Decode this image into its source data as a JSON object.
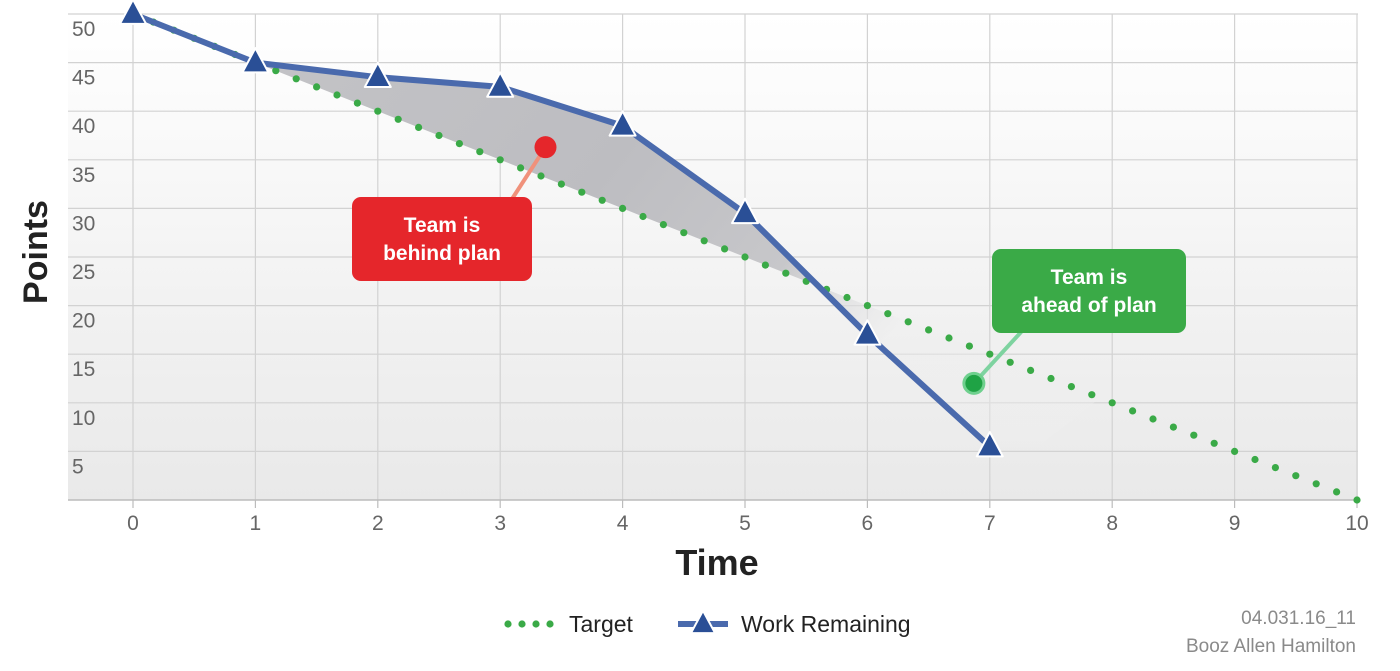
{
  "chart_data": {
    "type": "line",
    "title": "",
    "xlabel": "Time",
    "ylabel": "Points",
    "x": [
      0,
      1,
      2,
      3,
      4,
      5,
      6,
      7,
      8,
      9,
      10
    ],
    "xlim": [
      0,
      10
    ],
    "ylim": [
      0,
      50
    ],
    "x_ticks": [
      "0",
      "1",
      "2",
      "3",
      "4",
      "5",
      "6",
      "7",
      "8",
      "9",
      "10"
    ],
    "y_ticks": [
      "5",
      "10",
      "15",
      "20",
      "25",
      "30",
      "35",
      "40",
      "45",
      "50"
    ],
    "grid": true,
    "legend_position": "bottom",
    "series": [
      {
        "name": "Target",
        "style": "dotted",
        "color": "#3aaa47",
        "x": [
          0,
          10
        ],
        "y": [
          50,
          0
        ]
      },
      {
        "name": "Work Remaining",
        "style": "line-triangle-markers",
        "color": "#4a6aad",
        "marker_color": "#2a4f96",
        "x": [
          0,
          1,
          2,
          3,
          4,
          5,
          6,
          7
        ],
        "y": [
          50,
          45,
          43.5,
          42.5,
          38.5,
          29.5,
          17,
          5.5
        ]
      }
    ],
    "annotations": [
      {
        "text_lines": [
          "Team is",
          "behind plan"
        ],
        "color": "#e5262b",
        "point_color": "#e5262b",
        "point": [
          3.37,
          36.3
        ]
      },
      {
        "text_lines": [
          "Team is",
          "ahead of plan"
        ],
        "color": "#3aaa47",
        "point_color": "#1fa345",
        "point": [
          6.87,
          12
        ]
      }
    ]
  },
  "footer": {
    "code": "04.031.16_11",
    "company": "Booz Allen Hamilton"
  }
}
